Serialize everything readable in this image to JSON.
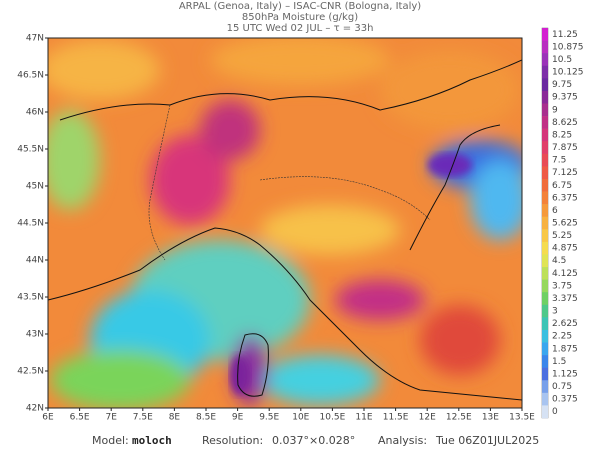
{
  "header": {
    "line1": "ARPAL (Genoa, Italy)  –  ISAC-CNR (Bologna, Italy)",
    "line2": "850hPa Moisture (g/kg)",
    "line3": "15 UTC Wed 02 JUL  –  τ = 33h"
  },
  "map": {
    "lon_labels": [
      "6E",
      "6.5E",
      "7E",
      "7.5E",
      "8E",
      "8.5E",
      "9E",
      "9.5E",
      "10E",
      "10.5E",
      "11E",
      "11.5E",
      "12E",
      "12.5E",
      "13E",
      "13.5E"
    ],
    "lat_labels": [
      "47N",
      "46.5N",
      "46N",
      "45.5N",
      "45N",
      "44.5N",
      "44N",
      "43.5N",
      "43N",
      "42.5N",
      "42N"
    ]
  },
  "colorbar": {
    "labels": [
      "11.25",
      "10.875",
      "10.5",
      "10.125",
      "9.75",
      "9.375",
      "9",
      "8.625",
      "8.25",
      "7.875",
      "7.5",
      "7.125",
      "6.75",
      "6.375",
      "6",
      "5.625",
      "5.25",
      "4.875",
      "4.5",
      "4.125",
      "3.75",
      "3.375",
      "3",
      "2.625",
      "2.25",
      "1.875",
      "1.5",
      "1.125",
      "0.75",
      "0.375",
      "0"
    ]
  },
  "footer": {
    "model_label": "Model:",
    "model": "moloch",
    "resolution_label": "Resolution:",
    "resolution": "0.037°×0.028°",
    "analysis_label": "Analysis:",
    "analysis": "Tue 06Z01JUL2025"
  }
}
